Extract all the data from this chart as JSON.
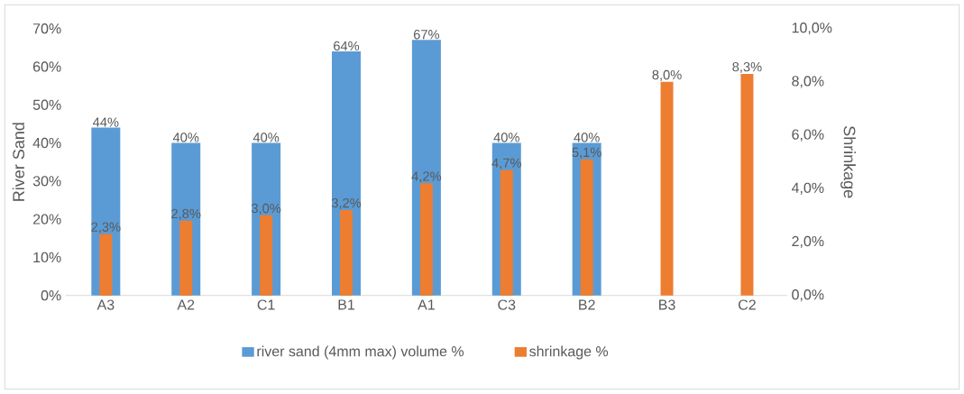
{
  "chart_data": {
    "type": "bar",
    "categories": [
      "A3",
      "A2",
      "C1",
      "B1",
      "A1",
      "C3",
      "B2",
      "B3",
      "C2"
    ],
    "series": [
      {
        "name": "river sand (4mm max) volume %",
        "color": "#5b9bd5",
        "values": [
          44,
          40,
          40,
          64,
          67,
          40,
          40,
          null,
          null
        ],
        "value_labels": [
          "44%",
          "40%",
          "40%",
          "64%",
          "67%",
          "40%",
          "40%",
          null,
          null
        ]
      },
      {
        "name": "shrinkage %",
        "color": "#ed7d31",
        "axis": "y2",
        "values": [
          2.3,
          2.8,
          3.0,
          3.2,
          4.2,
          4.7,
          5.1,
          8.0,
          8.3
        ],
        "value_labels": [
          "2,3%",
          "2,8%",
          "3,0%",
          "3,2%",
          "4,2%",
          "4,7%",
          "5,1%",
          "8,0%",
          "8,3%"
        ]
      }
    ],
    "ylabel": "River Sand",
    "y2label": "Shrinkage",
    "ylim": [
      0,
      70
    ],
    "yticks": [
      {
        "value": 0,
        "label": "0%"
      },
      {
        "value": 10,
        "label": "10%"
      },
      {
        "value": 20,
        "label": "20%"
      },
      {
        "value": 30,
        "label": "30%"
      },
      {
        "value": 40,
        "label": "40%"
      },
      {
        "value": 50,
        "label": "50%"
      },
      {
        "value": 60,
        "label": "60%"
      },
      {
        "value": 70,
        "label": "70%"
      }
    ],
    "y2lim": [
      0,
      10
    ],
    "y2ticks": [
      {
        "value": 0,
        "label": "0,0%"
      },
      {
        "value": 2,
        "label": "2,0%"
      },
      {
        "value": 4,
        "label": "4,0%"
      },
      {
        "value": 6,
        "label": "6,0%"
      },
      {
        "value": 8,
        "label": "8,0%"
      },
      {
        "value": 10,
        "label": "10,0%"
      }
    ],
    "legend": "bottom"
  }
}
